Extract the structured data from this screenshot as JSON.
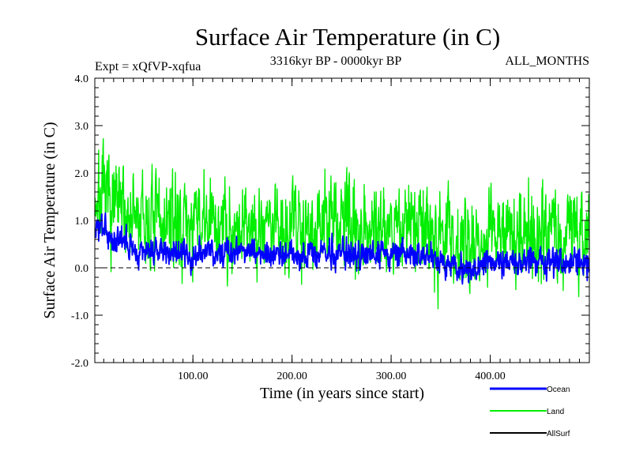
{
  "chart_data": {
    "type": "line",
    "title": "Surface Air Temperature (in C)",
    "subtitle_left": "Expt = xQfVP-xqfua",
    "subtitle_center": "3316kyr BP - 0000kyr BP",
    "subtitle_right": "ALL_MONTHS",
    "xlabel": "Time (in years since start)",
    "ylabel": "Surface Air Temperature (in C)",
    "xlim": [
      1,
      500
    ],
    "ylim": [
      -2.0,
      4.0
    ],
    "x_ticks": [
      100,
      200,
      300,
      400
    ],
    "x_tick_labels": [
      "100.00",
      "200.00",
      "300.00",
      "400.00"
    ],
    "y_ticks": [
      -2,
      -1,
      0,
      1,
      2,
      3,
      4
    ],
    "y_tick_labels": [
      "-2.0",
      "-1.0",
      "0.0",
      "1.0",
      "2.0",
      "3.0",
      "4.0"
    ],
    "zero_line": true,
    "legend_position": "bottom-right",
    "series": [
      {
        "name": "Land",
        "color": "#00ee00",
        "mean_anchors": [
          [
            1,
            1.5
          ],
          [
            15,
            1.35
          ],
          [
            50,
            0.95
          ],
          [
            100,
            0.9
          ],
          [
            150,
            0.9
          ],
          [
            200,
            0.95
          ],
          [
            250,
            0.95
          ],
          [
            300,
            0.9
          ],
          [
            340,
            0.85
          ],
          [
            370,
            0.5
          ],
          [
            400,
            0.65
          ],
          [
            450,
            0.8
          ],
          [
            500,
            0.8
          ]
        ],
        "spread": 0.75,
        "seed": 7
      },
      {
        "name": "Ocean",
        "color": "#0000ff",
        "mean_anchors": [
          [
            1,
            0.9
          ],
          [
            10,
            0.75
          ],
          [
            40,
            0.4
          ],
          [
            100,
            0.28
          ],
          [
            150,
            0.35
          ],
          [
            200,
            0.25
          ],
          [
            250,
            0.3
          ],
          [
            300,
            0.3
          ],
          [
            340,
            0.25
          ],
          [
            370,
            0.0
          ],
          [
            400,
            0.1
          ],
          [
            450,
            0.15
          ],
          [
            500,
            0.1
          ]
        ],
        "spread": 0.22,
        "seed": 3
      },
      {
        "name": "AllSurf",
        "color": "#000000",
        "mean_anchors": [],
        "spread": 0,
        "seed": 0
      }
    ]
  }
}
